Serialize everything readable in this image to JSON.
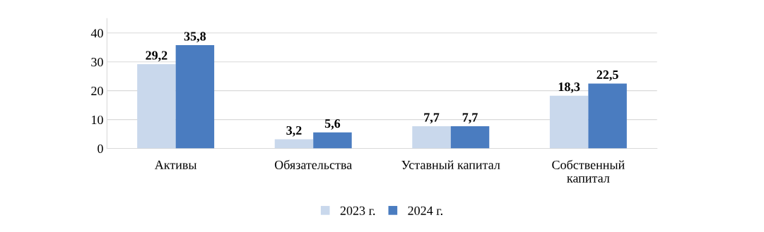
{
  "chart_data": {
    "type": "bar",
    "categories": [
      "Активы",
      "Обязательства",
      "Уставный капитал",
      "Собственный капитал"
    ],
    "series": [
      {
        "name": "2023 г.",
        "color": "#c9d8ec",
        "values": [
          29.2,
          3.2,
          7.7,
          18.3
        ],
        "value_labels": [
          "29,2",
          "3,2",
          "7,7",
          "18,3"
        ]
      },
      {
        "name": "2024 г.",
        "color": "#4a7cc0",
        "values": [
          35.8,
          5.6,
          7.7,
          22.5
        ],
        "value_labels": [
          "35,8",
          "5,6",
          "7,7",
          "22,5"
        ]
      }
    ],
    "ylim": [
      0,
      45
    ],
    "yticks": [
      0,
      10,
      20,
      30,
      40
    ],
    "grid": "y",
    "legend": "bottom"
  }
}
